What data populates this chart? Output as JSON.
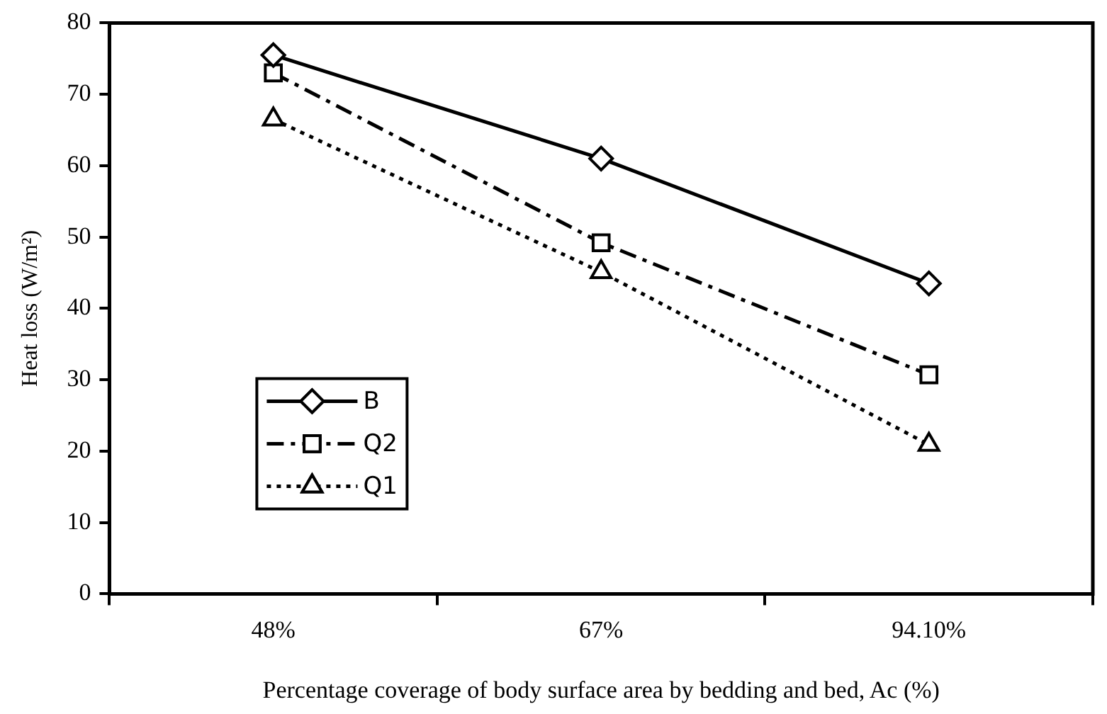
{
  "chart_data": {
    "type": "line",
    "xlabel": "Percentage coverage of body surface area by bedding and bed, Ac (%)",
    "ylabel": "Heat loss (W/m²)",
    "categories": [
      "48%",
      "67%",
      "94.10%"
    ],
    "series": [
      {
        "name": "B",
        "color": "#000000",
        "marker": "diamond",
        "line_style": "solid",
        "values": [
          75.5,
          61.0,
          43.5
        ]
      },
      {
        "name": "Q2",
        "color": "#000000",
        "marker": "square",
        "line_style": "dashed",
        "values": [
          73.0,
          49.2,
          30.7
        ]
      },
      {
        "name": "Q1",
        "color": "#000000",
        "marker": "triangle",
        "line_style": "dotted",
        "values": [
          66.5,
          45.1,
          20.9
        ]
      }
    ],
    "ylim": [
      0,
      80
    ],
    "yticks": [
      0,
      10,
      20,
      30,
      40,
      50,
      60,
      70,
      80
    ],
    "grid": false,
    "legend": "bottom left"
  }
}
